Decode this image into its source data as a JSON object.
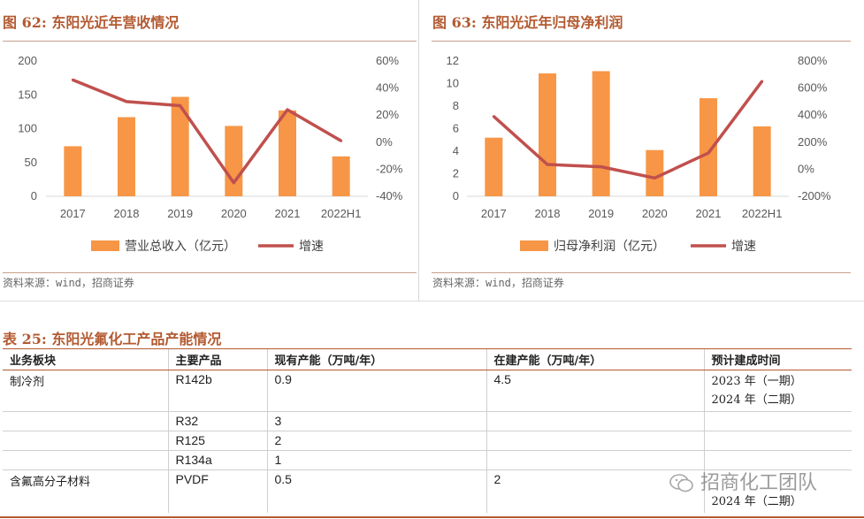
{
  "figures": [
    {
      "title": "图 62:  东阳光近年营收情况",
      "source": "资料来源：wind，招商证券",
      "chart_data": {
        "type": "bar",
        "categories": [
          "2017",
          "2018",
          "2019",
          "2020",
          "2021",
          "2022H1"
        ],
        "series": [
          {
            "name": "营业总收入（亿元）",
            "type": "bar",
            "axis": "left",
            "values": [
              74,
              117,
              147,
              104,
              127,
              59
            ]
          },
          {
            "name": "增速",
            "type": "line",
            "axis": "right",
            "values": [
              0.46,
              0.3,
              0.27,
              -0.3,
              0.24,
              0.01
            ]
          }
        ],
        "y_left": {
          "min": 0,
          "max": 200,
          "ticks": [
            "0",
            "50",
            "100",
            "150",
            "200"
          ]
        },
        "y_right": {
          "min": -0.4,
          "max": 0.6,
          "ticks": [
            "-40%",
            "-20%",
            "0%",
            "20%",
            "40%",
            "60%"
          ]
        },
        "legend": "bottom",
        "colors": {
          "bar": "#f79646",
          "line": "#c0504d"
        }
      }
    },
    {
      "title": "图 63:  东阳光近年归母净利润",
      "source": "资料来源：wind，招商证券",
      "chart_data": {
        "type": "bar",
        "categories": [
          "2017",
          "2018",
          "2019",
          "2020",
          "2021",
          "2022H1"
        ],
        "series": [
          {
            "name": "归母净利润（亿元）",
            "type": "bar",
            "axis": "left",
            "values": [
              5.2,
              10.9,
              11.1,
              4.1,
              8.7,
              6.2
            ]
          },
          {
            "name": "增速",
            "type": "line",
            "axis": "right",
            "values": [
              3.9,
              0.35,
              0.18,
              -0.65,
              1.2,
              6.5
            ]
          }
        ],
        "y_left": {
          "min": 0,
          "max": 12,
          "ticks": [
            "0",
            "2",
            "4",
            "6",
            "8",
            "10",
            "12"
          ]
        },
        "y_right": {
          "min": -2,
          "max": 8,
          "ticks": [
            "-200%",
            "0%",
            "200%",
            "400%",
            "600%",
            "800%"
          ]
        },
        "legend": "bottom",
        "colors": {
          "bar": "#f79646",
          "line": "#c0504d"
        }
      }
    }
  ],
  "table": {
    "title": "表 25:  东阳光氟化工产品产能情况",
    "headers": [
      "业务板块",
      "主要产品",
      "现有产能（万吨/年）",
      "在建产能（万吨/年）",
      "预计建成时间"
    ],
    "rows": [
      {
        "segment": "制冷剂",
        "product": "R142b",
        "existing": "0.9",
        "under_construction": "4.5",
        "timeline": [
          "2023 年（一期）",
          "2024 年（二期）"
        ]
      },
      {
        "segment": "",
        "product": "R32",
        "existing": "3",
        "under_construction": "",
        "timeline": []
      },
      {
        "segment": "",
        "product": "R125",
        "existing": "2",
        "under_construction": "",
        "timeline": []
      },
      {
        "segment": "",
        "product": "R134a",
        "existing": "1",
        "under_construction": "",
        "timeline": []
      },
      {
        "segment": "含氟高分子材料",
        "product": "PVDF",
        "existing": "0.5",
        "under_construction": "2",
        "timeline": [
          "2024 年（二期）"
        ]
      }
    ]
  },
  "watermark": "招商化工团队"
}
